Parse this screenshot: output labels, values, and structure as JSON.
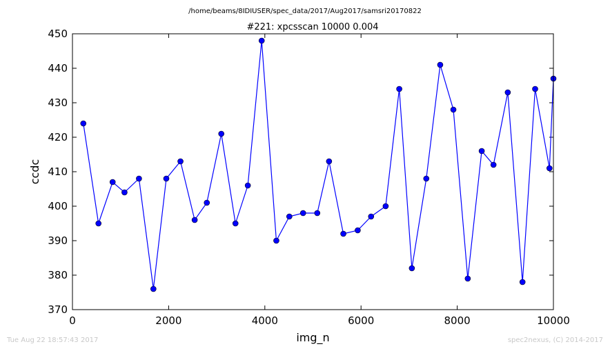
{
  "figure": {
    "suptitle": "/home/beams/8IDIUSER/spec_data/2017/Aug2017/samsri20170822",
    "footer_left": "Tue Aug 22 18:57:43 2017",
    "footer_right": "spec2nexus, (C) 2014-2017"
  },
  "chart_data": {
    "type": "line",
    "title": "#221: xpcsscan 10000 0.004",
    "xlabel": "img_n",
    "ylabel": "ccdc",
    "xlim": [
      0,
      10000
    ],
    "ylim": [
      370,
      450
    ],
    "xticks": [
      0,
      2000,
      4000,
      6000,
      8000,
      10000
    ],
    "yticks": [
      370,
      380,
      390,
      400,
      410,
      420,
      430,
      440,
      450
    ],
    "grid": false,
    "marker": "circle",
    "color": "#0000ff",
    "series": [
      {
        "x": [
          226,
          541,
          835,
          1082,
          1383,
          1683,
          1951,
          2246,
          2541,
          2794,
          3095,
          3389,
          3646,
          3934,
          4239,
          4509,
          4795,
          5090,
          5335,
          5632,
          5931,
          6209,
          6512,
          6795,
          7057,
          7357,
          7646,
          7920,
          8219,
          8509,
          8754,
          9051,
          9357,
          9620,
          9918,
          10000
        ],
        "y": [
          424,
          395,
          407,
          404,
          408,
          376,
          408,
          413,
          396,
          401,
          421,
          395,
          406,
          448,
          390,
          397,
          398,
          398,
          413,
          392,
          393,
          397,
          400,
          434,
          382,
          408,
          441,
          428,
          379,
          416,
          412,
          433,
          378,
          434,
          411,
          437
        ]
      }
    ]
  }
}
